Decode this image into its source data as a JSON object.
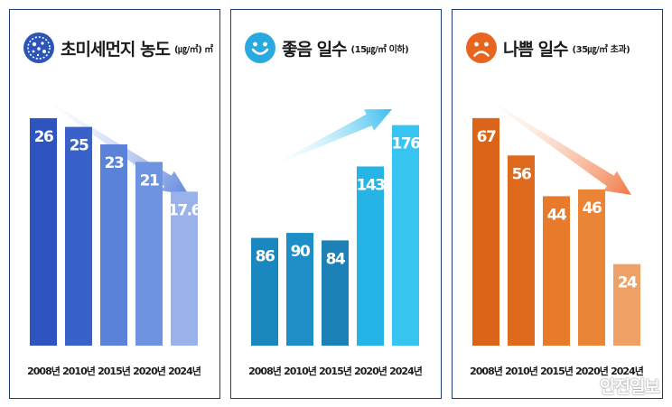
{
  "colors": {
    "panel_border": "#1f3d70",
    "text": "#1b1b1b"
  },
  "chart_data": [
    {
      "type": "bar",
      "title": "초미세먼지 농도",
      "subtitle": "(㎍/㎥) ㎥",
      "icon": "dust-particle-icon",
      "categories": [
        "2008년",
        "2010년",
        "2015년",
        "2020년",
        "2024년"
      ],
      "values": [
        26,
        25,
        23,
        21,
        17.6
      ],
      "value_labels": [
        "26",
        "25",
        "23",
        "21",
        "17.6"
      ],
      "ylim": [
        0,
        29.5
      ],
      "trend": "down",
      "bar_colors": [
        "#2e55bf",
        "#3862c9",
        "#5b82d9",
        "#6e93e0",
        "#99b3ea"
      ]
    },
    {
      "type": "bar",
      "title": "좋음 일수",
      "subtitle": "(15㎍/㎥ 이하)",
      "icon": "smiling-face-icon",
      "categories": [
        "2008년",
        "2010년",
        "2015년",
        "2020년",
        "2024년"
      ],
      "values": [
        86,
        90,
        84,
        143,
        176
      ],
      "value_labels": [
        "86",
        "90",
        "84",
        "143",
        "176"
      ],
      "ylim": [
        0,
        206
      ],
      "trend": "up",
      "bar_colors": [
        "#1a88be",
        "#1d8fc6",
        "#1b81b6",
        "#26b4e6",
        "#38c4f0"
      ]
    },
    {
      "type": "bar",
      "title": "나쁨 일수",
      "subtitle": "(35㎍/㎥ 초과)",
      "icon": "frowning-face-icon",
      "categories": [
        "2008년",
        "2010년",
        "2015년",
        "2020년",
        "2024년"
      ],
      "values": [
        67,
        56,
        44,
        46,
        24
      ],
      "value_labels": [
        "67",
        "56",
        "44",
        "46",
        "24"
      ],
      "ylim": [
        0,
        76
      ],
      "trend": "down",
      "bar_colors": [
        "#dc6418",
        "#df6a1d",
        "#e77a2b",
        "#ea8437",
        "#efa067"
      ]
    }
  ],
  "watermark": "안전일보"
}
